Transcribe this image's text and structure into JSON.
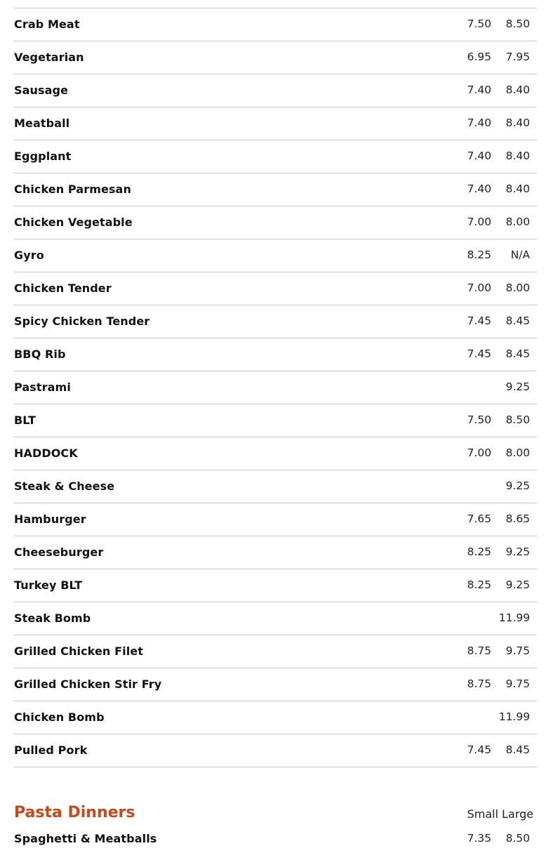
{
  "accent_color": "#c8471e",
  "items": [
    {
      "name": "Crab Meat",
      "small": "7.50",
      "large": "8.50"
    },
    {
      "name": "Vegetarian",
      "small": "6.95",
      "large": "7.95"
    },
    {
      "name": "Sausage",
      "small": "7.40",
      "large": "8.40"
    },
    {
      "name": "Meatball",
      "small": "7.40",
      "large": "8.40"
    },
    {
      "name": "Eggplant",
      "small": "7.40",
      "large": "8.40"
    },
    {
      "name": "Chicken Parmesan",
      "small": "7.40",
      "large": "8.40"
    },
    {
      "name": "Chicken Vegetable",
      "small": "7.00",
      "large": "8.00"
    },
    {
      "name": "Gyro",
      "small": "8.25",
      "large": "N/A"
    },
    {
      "name": "Chicken Tender",
      "small": "7.00",
      "large": "8.00"
    },
    {
      "name": "Spicy Chicken Tender",
      "small": "7.45",
      "large": "8.45"
    },
    {
      "name": "BBQ Rib",
      "small": "7.45",
      "large": "8.45"
    },
    {
      "name": "Pastrami",
      "small": "",
      "large": "9.25"
    },
    {
      "name": "BLT",
      "small": "7.50",
      "large": "8.50"
    },
    {
      "name": "HADDOCK",
      "small": "7.00",
      "large": "8.00"
    },
    {
      "name": "Steak & Cheese",
      "small": "",
      "large": "9.25"
    },
    {
      "name": "Hamburger",
      "small": "7.65",
      "large": "8.65"
    },
    {
      "name": "Cheeseburger",
      "small": "8.25",
      "large": "9.25"
    },
    {
      "name": "Turkey BLT",
      "small": "8.25",
      "large": "9.25"
    },
    {
      "name": "Steak Bomb",
      "small": "",
      "large": "11.99"
    },
    {
      "name": "Grilled Chicken Filet",
      "small": "8.75",
      "large": "9.75"
    },
    {
      "name": "Grilled Chicken Stir Fry",
      "small": "8.75",
      "large": "9.75"
    },
    {
      "name": "Chicken Bomb",
      "small": "",
      "large": "11.99"
    },
    {
      "name": "Pulled Pork",
      "small": "7.45",
      "large": "8.45"
    }
  ],
  "pasta": {
    "title": "Pasta Dinners",
    "size_header": "Small Large",
    "items": [
      {
        "name": "Spaghetti & Meatballs",
        "small": "7.35",
        "large": "8.50"
      }
    ]
  }
}
